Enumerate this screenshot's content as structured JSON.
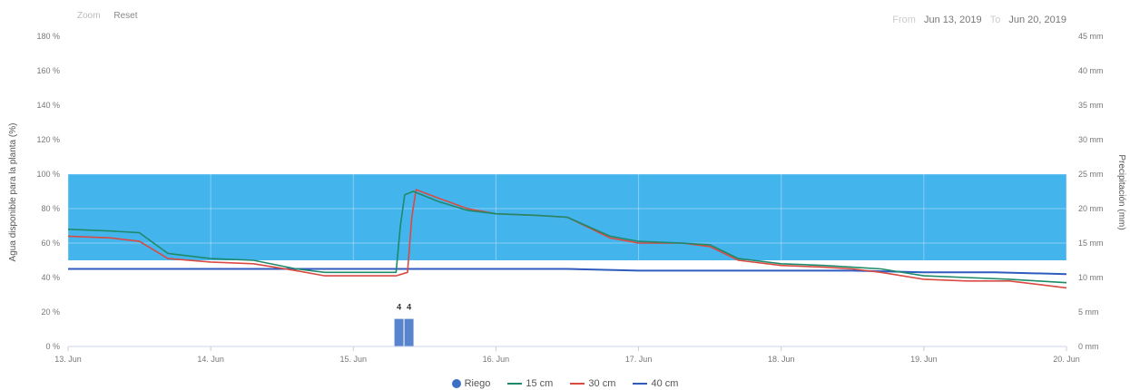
{
  "toolbar": {
    "zoom_label": "Zoom",
    "reset_label": "Reset"
  },
  "range": {
    "from_label": "From",
    "from_value": "Jun 13, 2019",
    "to_label": "To",
    "to_value": "Jun 20, 2019"
  },
  "chart_data": {
    "type": "line",
    "ylabel": "Agua disponible para la planta (%)",
    "y2label": "Precipitación (mm)",
    "ylim": [
      0,
      180
    ],
    "y2lim": [
      0,
      45
    ],
    "yticks": [
      "0 %",
      "20 %",
      "40 %",
      "60 %",
      "80 %",
      "100 %",
      "120 %",
      "140 %",
      "160 %",
      "180 %"
    ],
    "y2ticks": [
      "0 mm",
      "5 mm",
      "10 mm",
      "15 mm",
      "20 mm",
      "25 mm",
      "30 mm",
      "35 mm",
      "40 mm",
      "45 mm"
    ],
    "xlim": [
      13,
      20
    ],
    "xticks": [
      "13. Jun",
      "14. Jun",
      "15. Jun",
      "16. Jun",
      "17. Jun",
      "18. Jun",
      "19. Jun",
      "20. Jun"
    ],
    "band": {
      "from": 50,
      "to": 100,
      "color": "#3ab0ec"
    },
    "colors": {
      "Riego": "#3a6fc4",
      "15 cm": "#1e8a6a",
      "30 cm": "#d94a43",
      "40 cm": "#2f5bbf"
    },
    "series": [
      {
        "name": "15 cm",
        "axis": "left",
        "x": [
          13.0,
          13.3,
          13.5,
          13.7,
          14.0,
          14.3,
          14.6,
          14.8,
          15.0,
          15.2,
          15.3,
          15.33,
          15.36,
          15.42,
          15.6,
          15.8,
          16.0,
          16.3,
          16.5,
          16.8,
          17.0,
          17.3,
          17.5,
          17.7,
          18.0,
          18.3,
          18.5,
          18.7,
          19.0,
          19.3,
          19.6,
          19.8,
          20.0
        ],
        "y": [
          68,
          67,
          66,
          54,
          51,
          50,
          45,
          43,
          43,
          43,
          43,
          70,
          88,
          90,
          84,
          79,
          77,
          76,
          75,
          64,
          61,
          60,
          59,
          51,
          48,
          47,
          46,
          45,
          41,
          40,
          39,
          38,
          37
        ]
      },
      {
        "name": "30 cm",
        "axis": "left",
        "x": [
          13.0,
          13.3,
          13.5,
          13.7,
          14.0,
          14.3,
          14.6,
          14.8,
          15.0,
          15.2,
          15.3,
          15.38,
          15.41,
          15.44,
          15.6,
          15.8,
          16.0,
          16.3,
          16.5,
          16.8,
          17.0,
          17.3,
          17.5,
          17.7,
          18.0,
          18.3,
          18.5,
          18.7,
          19.0,
          19.3,
          19.6,
          19.8,
          20.0
        ],
        "y": [
          64,
          63,
          61,
          51,
          49,
          48,
          44,
          41,
          41,
          41,
          41,
          43,
          75,
          91,
          86,
          80,
          77,
          76,
          75,
          63,
          60,
          60,
          58,
          50,
          47,
          46,
          45,
          43,
          39,
          38,
          38,
          36,
          34
        ]
      },
      {
        "name": "40 cm",
        "axis": "left",
        "x": [
          13.0,
          13.5,
          14.0,
          14.5,
          15.0,
          15.3,
          15.4,
          15.6,
          16.0,
          16.5,
          17.0,
          17.5,
          18.0,
          18.5,
          19.0,
          19.5,
          20.0
        ],
        "y": [
          45,
          45,
          45,
          45,
          45,
          45,
          45,
          45,
          45,
          45,
          44,
          44,
          44,
          44,
          43,
          43,
          42
        ]
      },
      {
        "name": "Riego",
        "axis": "right",
        "type": "bar",
        "x": [
          15.32,
          15.39
        ],
        "y": [
          4,
          4
        ]
      }
    ]
  },
  "legend": {
    "riego": "Riego",
    "s15": "15 cm",
    "s30": "30 cm",
    "s40": "40 cm"
  }
}
